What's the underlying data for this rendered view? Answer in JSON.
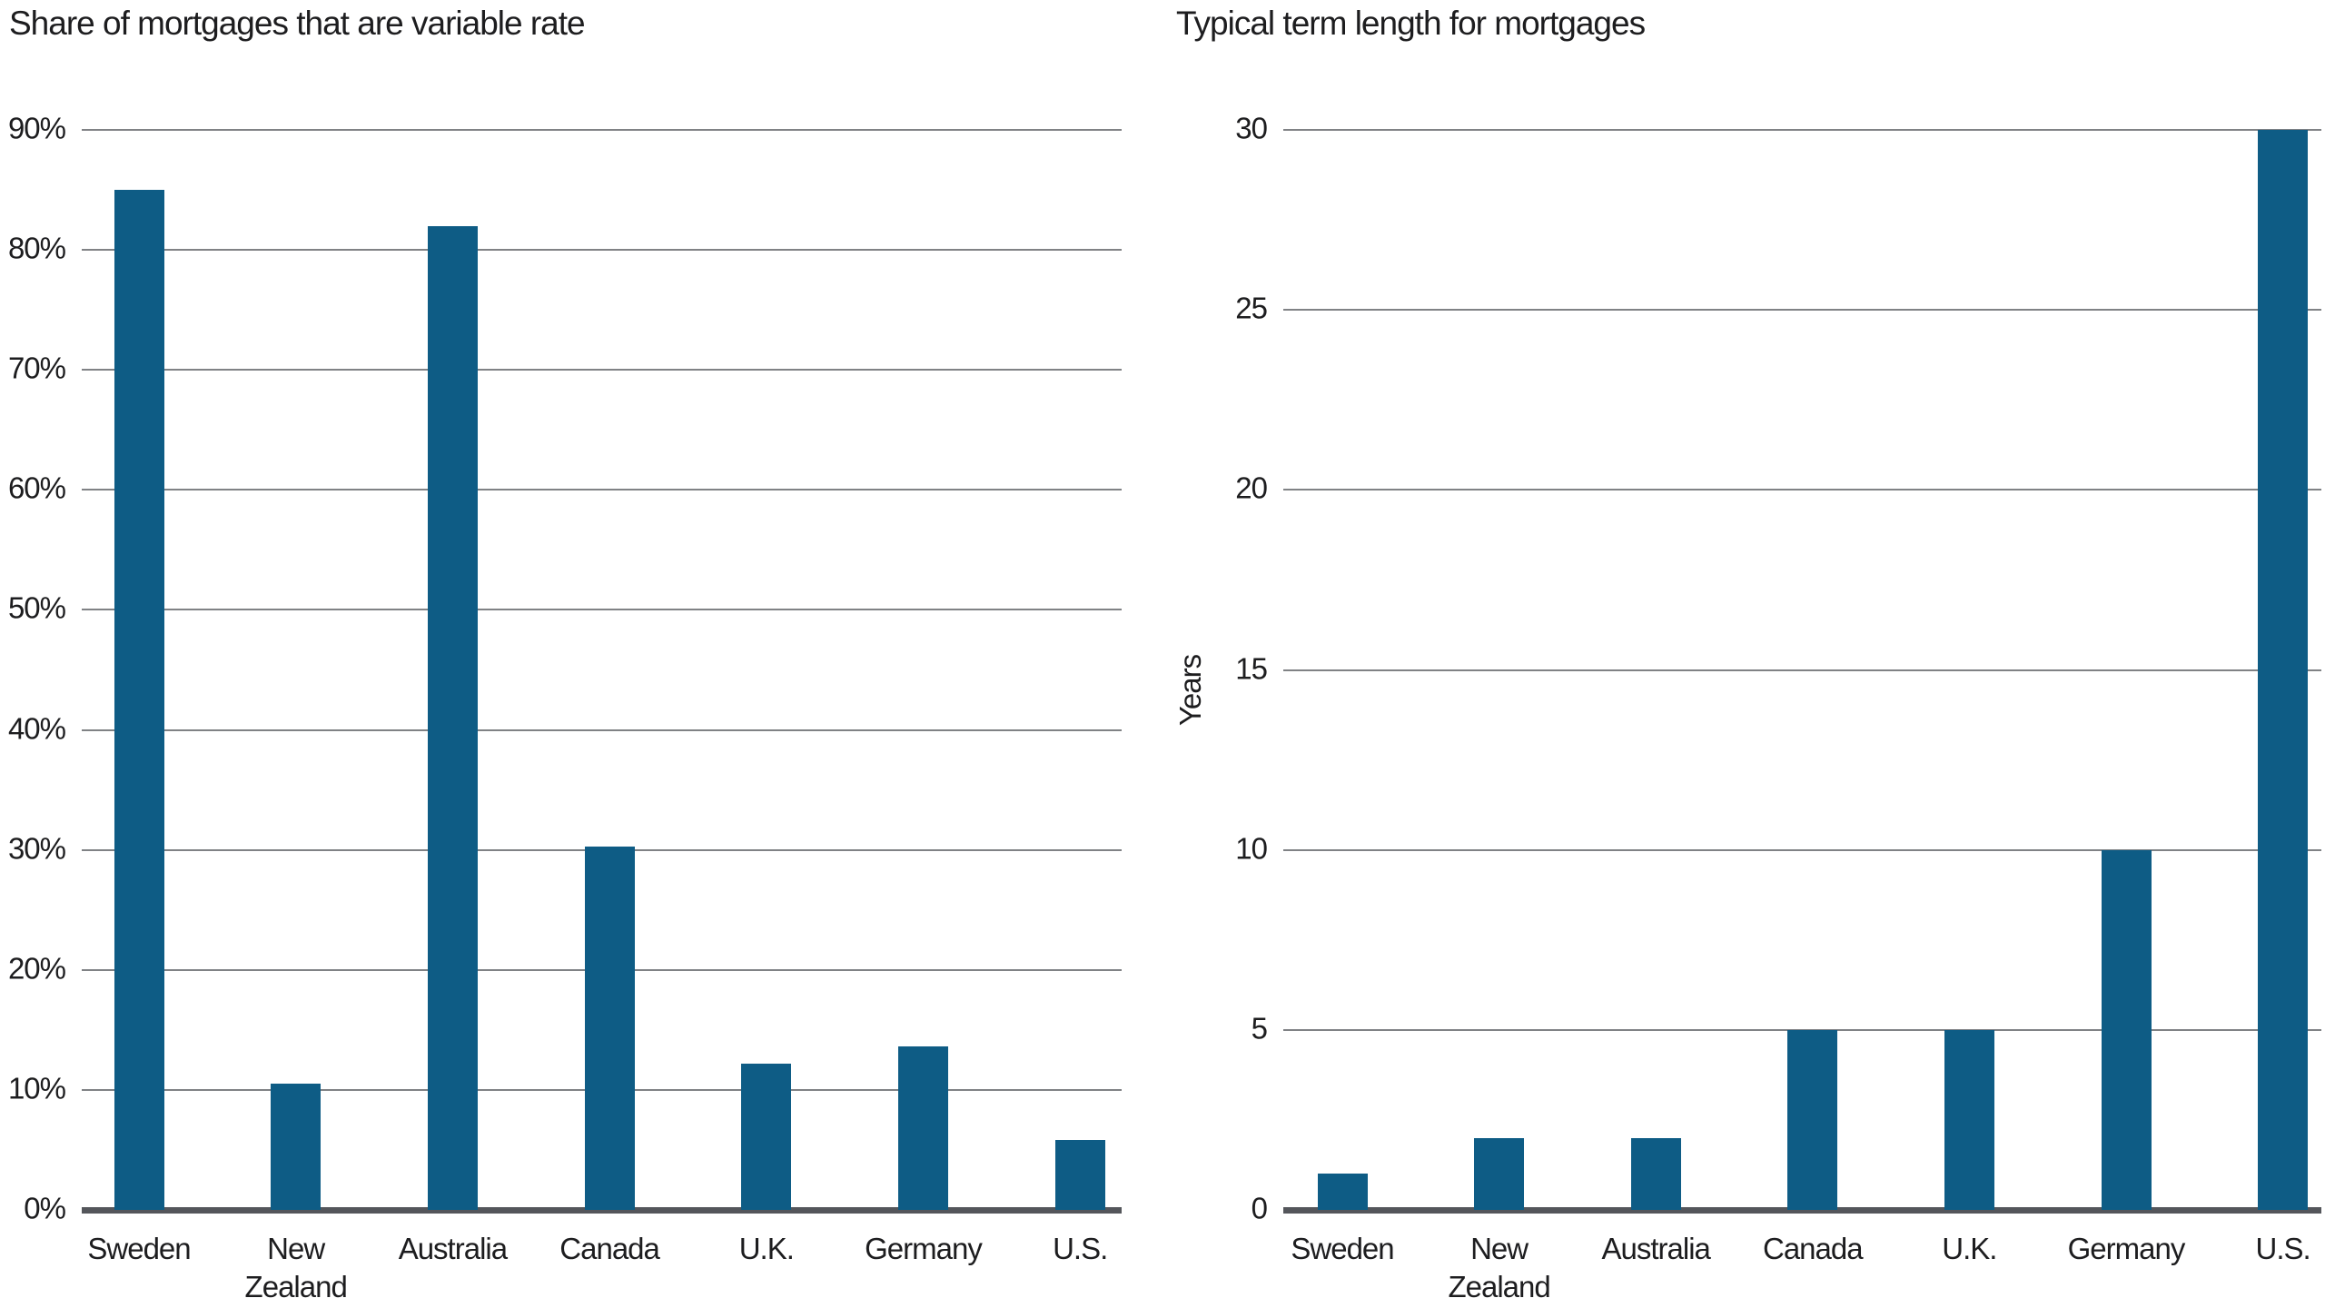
{
  "page": {
    "background_color": "#ffffff",
    "text_color": "#1d1d1f",
    "bar_color": "#0e5c85",
    "gridline_color": "#808285",
    "axis_color": "#54565b"
  },
  "chart_data": [
    {
      "type": "bar",
      "title": "Share of mortgages that are variable rate",
      "categories": [
        "Sweden",
        "New Zealand",
        "Australia",
        "Canada",
        "U.K.",
        "Germany",
        "U.S."
      ],
      "values": [
        85,
        10.5,
        82,
        30.3,
        12.2,
        13.6,
        5.8
      ],
      "xlabel": "",
      "ylabel": "",
      "ylim": [
        0,
        90
      ],
      "ytick_step": 10,
      "ytick_labels": [
        "0%",
        "10%",
        "20%",
        "30%",
        "40%",
        "50%",
        "60%",
        "70%",
        "80%",
        "90%"
      ],
      "grid": true,
      "legend": "none"
    },
    {
      "type": "bar",
      "title": "Typical term length for mortgages",
      "categories": [
        "Sweden",
        "New Zealand",
        "Australia",
        "Canada",
        "U.K.",
        "Germany",
        "U.S."
      ],
      "values": [
        1,
        2,
        2,
        5,
        5,
        10,
        30
      ],
      "xlabel": "",
      "ylabel": "Years",
      "ylim": [
        0,
        30
      ],
      "ytick_step": 5,
      "ytick_labels": [
        "0",
        "5",
        "10",
        "15",
        "20",
        "25",
        "30"
      ],
      "grid": true,
      "legend": "none"
    }
  ]
}
